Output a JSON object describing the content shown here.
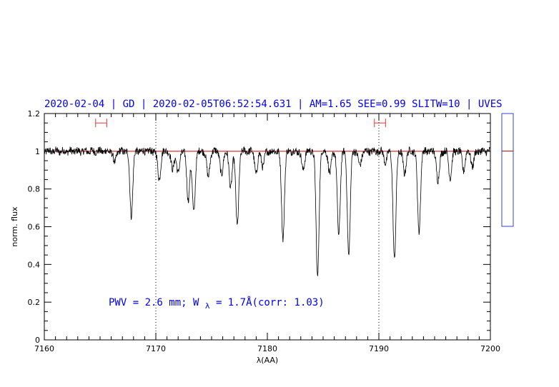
{
  "chart_data": {
    "type": "line",
    "title": "2020-02-04 | GD | 2020-02-05T06:52:54.631 | AM=1.65 SEE=0.99 SLITW=10 | UVES",
    "xlabel": "λ(AA)",
    "ylabel": "norm. flux",
    "xlim": [
      7160,
      7200
    ],
    "ylim": [
      0,
      1.2
    ],
    "xticks": [
      7160,
      7170,
      7180,
      7190,
      7200
    ],
    "xtick_labels": [
      "7160",
      "7170",
      "7180",
      "7190",
      "7200"
    ],
    "yticks": [
      0,
      0.2,
      0.4,
      0.6,
      0.8,
      1.0,
      1.2
    ],
    "ytick_labels": [
      "0",
      "0.2",
      "0.4",
      "0.6",
      "0.8",
      "1",
      "1.2"
    ],
    "continuum_level": 1.0,
    "vlines": [
      7170,
      7190
    ],
    "annotation": {
      "prefix": "PWV = 2.6 mm; W",
      "subscript": "λ",
      "suffix": " = 1.7Å(corr: 1.03)"
    },
    "windows": [
      {
        "x_start": 7164.6,
        "x_end": 7165.6,
        "y": 1.15
      },
      {
        "x_start": 7189.6,
        "x_end": 7190.6,
        "y": 1.15
      }
    ],
    "absorption_lines": [
      {
        "x": 7166.3,
        "depth": 0.06
      },
      {
        "x": 7167.8,
        "depth": 0.34
      },
      {
        "x": 7170.3,
        "depth": 0.15
      },
      {
        "x": 7171.5,
        "depth": 0.1
      },
      {
        "x": 7172.0,
        "depth": 0.12
      },
      {
        "x": 7172.9,
        "depth": 0.26
      },
      {
        "x": 7173.4,
        "depth": 0.33
      },
      {
        "x": 7174.7,
        "depth": 0.14
      },
      {
        "x": 7175.9,
        "depth": 0.13
      },
      {
        "x": 7176.7,
        "depth": 0.2
      },
      {
        "x": 7177.3,
        "depth": 0.4
      },
      {
        "x": 7179.0,
        "depth": 0.12
      },
      {
        "x": 7179.6,
        "depth": 0.08
      },
      {
        "x": 7181.4,
        "depth": 0.46
      },
      {
        "x": 7183.2,
        "depth": 0.1
      },
      {
        "x": 7184.5,
        "depth": 0.67
      },
      {
        "x": 7185.6,
        "depth": 0.12
      },
      {
        "x": 7186.4,
        "depth": 0.45
      },
      {
        "x": 7187.3,
        "depth": 0.55
      },
      {
        "x": 7188.3,
        "depth": 0.08
      },
      {
        "x": 7190.6,
        "depth": 0.06
      },
      {
        "x": 7191.4,
        "depth": 0.58
      },
      {
        "x": 7192.3,
        "depth": 0.12
      },
      {
        "x": 7193.6,
        "depth": 0.43
      },
      {
        "x": 7195.3,
        "depth": 0.16
      },
      {
        "x": 7196.4,
        "depth": 0.14
      },
      {
        "x": 7197.6,
        "depth": 0.1
      },
      {
        "x": 7198.4,
        "depth": 0.08
      }
    ],
    "noise_amplitude": 0.02,
    "side_gauge": {
      "min": 0.0,
      "max": 1.2,
      "marker": 0.8
    }
  }
}
